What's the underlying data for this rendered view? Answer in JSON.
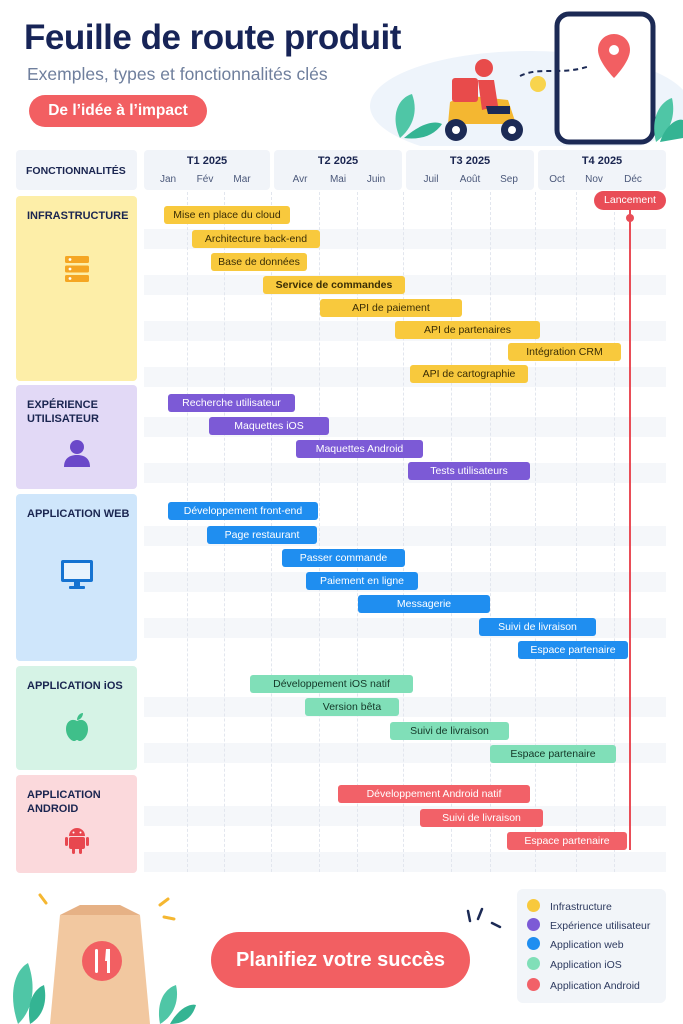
{
  "header": {
    "title": "Feuille de route produit",
    "subtitle": "Exemples, types et fonctionnalités clés",
    "pill": "De l’idée à l’impact"
  },
  "table": {
    "feature_header": "FONCTIONNALITÉS",
    "quarters": [
      "T1 2025",
      "T2 2025",
      "T3 2025",
      "T4 2025"
    ],
    "months": [
      "Jan",
      "Fév",
      "Mar",
      "Avr",
      "Mai",
      "Juin",
      "Juil",
      "Août",
      "Sep",
      "Oct",
      "Nov",
      "Déc"
    ]
  },
  "categories": [
    {
      "label": "INFRASTRUCTURE",
      "icon": "server-icon",
      "color": "#fdeea8"
    },
    {
      "label": "EXPÉRIENCE UTILISATEUR",
      "icon": "user-icon",
      "color": "#e2d9f6"
    },
    {
      "label": "APPLICATION WEB",
      "icon": "monitor-icon",
      "color": "#cfe6fb"
    },
    {
      "label": "APPLICATION iOS",
      "icon": "apple-icon",
      "color": "#d6f3e6"
    },
    {
      "label": "APPLICATION ANDROID",
      "icon": "android-icon",
      "color": "#fbd9dc"
    }
  ],
  "tasks": [
    {
      "label": "Mise en place du cloud",
      "category": 0
    },
    {
      "label": "Architecture back-end",
      "category": 0
    },
    {
      "label": "Base de données",
      "category": 0
    },
    {
      "label": "Service de commandes",
      "category": 0
    },
    {
      "label": "API de paiement",
      "category": 0
    },
    {
      "label": "API de partenaires",
      "category": 0
    },
    {
      "label": "Intégration CRM",
      "category": 0
    },
    {
      "label": "API de cartographie",
      "category": 0
    },
    {
      "label": "Recherche utilisateur",
      "category": 1
    },
    {
      "label": "Maquettes iOS",
      "category": 1
    },
    {
      "label": "Maquettes Android",
      "category": 1
    },
    {
      "label": "Tests utilisateurs",
      "category": 1
    },
    {
      "label": "Développement front-end",
      "category": 2
    },
    {
      "label": "Page restaurant",
      "category": 2
    },
    {
      "label": "Passer commande",
      "category": 2
    },
    {
      "label": "Paiement en ligne",
      "category": 2
    },
    {
      "label": "Messagerie",
      "category": 2
    },
    {
      "label": "Suivi de livraison",
      "category": 2
    },
    {
      "label": "Espace partenaire",
      "category": 2
    },
    {
      "label": "Développement iOS natif",
      "category": 3
    },
    {
      "label": "Version bêta",
      "category": 3
    },
    {
      "label": "Suivi de livraison",
      "category": 3
    },
    {
      "label": "Espace partenaire",
      "category": 3
    },
    {
      "label": "Développement Android natif",
      "category": 4
    },
    {
      "label": "Suivi de livraison",
      "category": 4
    },
    {
      "label": "Espace partenaire",
      "category": 4
    }
  ],
  "milestone": {
    "label": "Lancement"
  },
  "cta": "Planifiez votre succès",
  "legend": [
    {
      "label": "Infrastructure",
      "color": "#f8c93d"
    },
    {
      "label": "Expérience utilisateur",
      "color": "#7c5ad6"
    },
    {
      "label": "Application web",
      "color": "#1f8ef0"
    },
    {
      "label": "Application iOS",
      "color": "#80dfb8"
    },
    {
      "label": "Application Android",
      "color": "#f26168"
    }
  ]
}
